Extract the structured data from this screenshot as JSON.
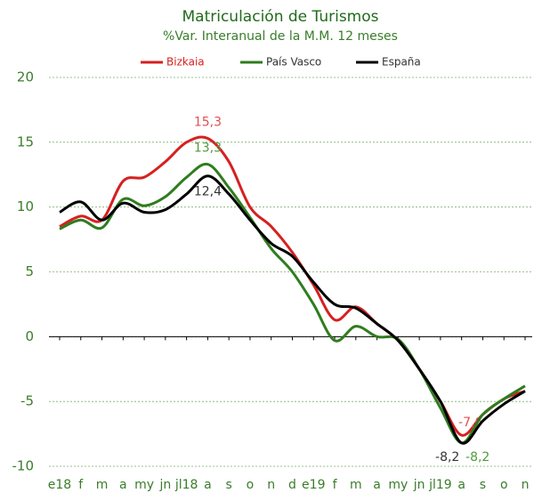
{
  "chart_data": {
    "type": "line",
    "title": "Matriculación de Turismos",
    "subtitle": "%Var. Interanual de la M.M. 12 meses",
    "categories": [
      "e18",
      "f",
      "m",
      "a",
      "my",
      "jn",
      "jl18",
      "a",
      "s",
      "o",
      "n",
      "d",
      "e19",
      "f",
      "m",
      "a",
      "my",
      "jn",
      "jl19",
      "a",
      "s",
      "o",
      "n"
    ],
    "ylim": [
      -10,
      20
    ],
    "yticks": [
      -10,
      -5,
      0,
      5,
      10,
      15,
      20
    ],
    "grid": true,
    "legend": "top",
    "series": [
      {
        "name": "Bizkaia",
        "color": "#d62020",
        "values": [
          8.5,
          9.3,
          9.0,
          12.0,
          12.3,
          13.5,
          15.0,
          15.3,
          13.5,
          10.0,
          8.5,
          6.5,
          4.0,
          1.3,
          2.3,
          1.0,
          -0.3,
          -2.5,
          -5.0,
          -7.6,
          -6.0,
          -4.8,
          -4.2
        ],
        "value_labels": [
          null,
          null,
          null,
          null,
          null,
          null,
          null,
          "15,3",
          null,
          null,
          null,
          null,
          null,
          null,
          null,
          null,
          null,
          null,
          null,
          "-7,6",
          null,
          null,
          null
        ]
      },
      {
        "name": "País Vasco",
        "color": "#2e7d1e",
        "values": [
          8.3,
          9.0,
          8.4,
          10.6,
          10.1,
          10.8,
          12.3,
          13.3,
          11.5,
          9.2,
          6.8,
          5.0,
          2.5,
          -0.3,
          0.8,
          0.0,
          -0.2,
          -2.5,
          -5.5,
          -8.2,
          -6.0,
          -4.8,
          -3.8
        ],
        "value_labels": [
          null,
          null,
          null,
          null,
          null,
          null,
          null,
          "13,3",
          null,
          null,
          null,
          null,
          null,
          null,
          null,
          null,
          null,
          null,
          null,
          "-8,2",
          null,
          null,
          null
        ]
      },
      {
        "name": "España",
        "color": "#000000",
        "values": [
          9.6,
          10.4,
          9.0,
          10.3,
          9.6,
          9.8,
          11.0,
          12.4,
          11.0,
          9.0,
          7.2,
          6.2,
          4.2,
          2.5,
          2.2,
          1.0,
          -0.3,
          -2.5,
          -5.0,
          -8.2,
          -6.5,
          -5.2,
          -4.2
        ],
        "value_labels": [
          null,
          null,
          null,
          null,
          null,
          null,
          null,
          "12,4",
          null,
          null,
          null,
          null,
          null,
          null,
          null,
          null,
          null,
          null,
          null,
          "-8,2",
          null,
          null,
          null
        ]
      }
    ]
  }
}
